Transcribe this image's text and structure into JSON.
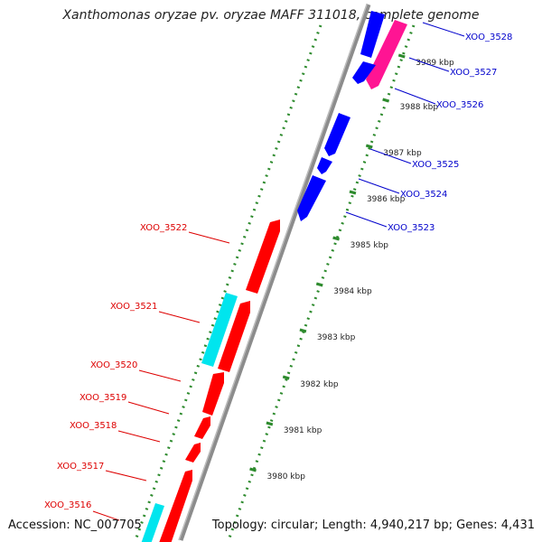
{
  "title": "Xanthomonas oryzae pv. oryzae MAFF 311018, complete genome",
  "footer": {
    "accession": "Accession: NC_007705",
    "topology": "Topology: circular; Length: 4,940,217 bp; Genes: 4,431"
  },
  "colors": {
    "backbone": "#8c8c8c",
    "dots": "#2e8b2e",
    "forward": "#ff0000",
    "reverse": "#0000ff",
    "forward_other": "#00e5ee",
    "reverse_other": "#ff1493",
    "forward_label": "#dd0000",
    "reverse_label": "#0000cc"
  },
  "kbp_labels": [
    "3980 kbp",
    "3981 kbp",
    "3982 kbp",
    "3983 kbp",
    "3984 kbp",
    "3985 kbp",
    "3986 kbp",
    "3987 kbp",
    "3988 kbp",
    "3989 kbp"
  ],
  "genes_forward": [
    "XOO_3516",
    "XOO_3517",
    "XOO_3518",
    "XOO_3519",
    "XOO_3520",
    "XOO_3521",
    "XOO_3522"
  ],
  "genes_reverse": [
    "XOO_3523",
    "XOO_3524",
    "XOO_3525",
    "XOO_3526",
    "XOO_3527",
    "XOO_3528"
  ]
}
